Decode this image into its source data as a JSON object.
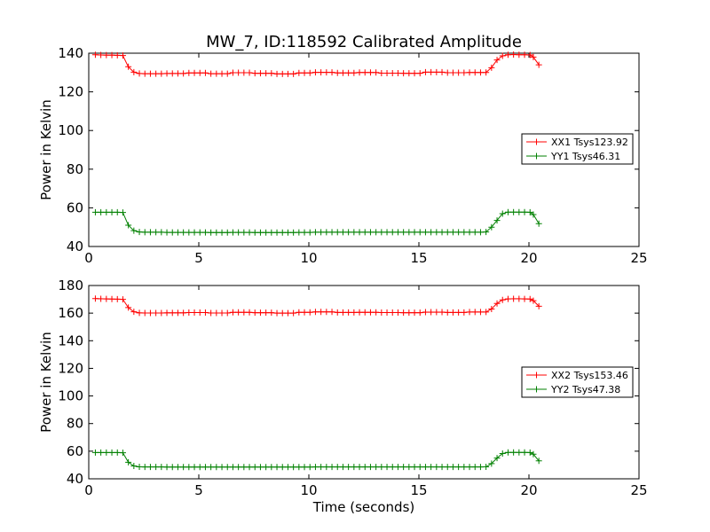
{
  "figure": {
    "title": "MW_7, ID:118592 Calibrated Amplitude"
  },
  "chart_data": [
    {
      "type": "line",
      "title": "MW_7, ID:118592 Calibrated Amplitude",
      "xlabel": "",
      "ylabel": "Power in Kelvin",
      "xlim": [
        0,
        25
      ],
      "ylim": [
        40,
        140
      ],
      "xticks": [
        "0",
        "5",
        "10",
        "15",
        "20",
        "25"
      ],
      "yticks": [
        "40",
        "60",
        "80",
        "100",
        "120",
        "140"
      ],
      "grid": false,
      "legend_position": "right",
      "series": [
        {
          "name": "XX1 Tsys123.92",
          "color": "#ff0000",
          "marker": "+",
          "points": [
            [
              0.3,
              139.2
            ],
            [
              0.55,
              139.1
            ],
            [
              0.8,
              139.0
            ],
            [
              1.05,
              139.0
            ],
            [
              1.3,
              138.9
            ],
            [
              1.55,
              138.8
            ],
            [
              1.8,
              133.0
            ],
            [
              2.05,
              130.2
            ],
            [
              2.3,
              129.5
            ],
            [
              18.05,
              130.0
            ],
            [
              18.3,
              132.5
            ],
            [
              18.55,
              136.5
            ],
            [
              18.8,
              138.6
            ],
            [
              19.05,
              139.2
            ],
            [
              19.3,
              139.3
            ],
            [
              19.55,
              139.2
            ],
            [
              19.8,
              139.2
            ],
            [
              20.05,
              139.1
            ],
            [
              20.2,
              138.0
            ],
            [
              20.45,
              134.0
            ]
          ],
          "flat_segment": {
            "x_start": 2.55,
            "x_end": 17.8,
            "y_values": [
              129.4,
              129.5,
              129.8,
              129.4,
              129.9,
              129.6,
              129.3,
              129.8,
              130.1,
              129.8,
              130.0,
              129.7,
              129.6,
              130.2,
              129.9,
              130.0
            ]
          }
        },
        {
          "name": "YY1 Tsys46.31",
          "color": "#008000",
          "marker": "+",
          "points": [
            [
              0.3,
              57.7
            ],
            [
              0.55,
              57.7
            ],
            [
              0.8,
              57.7
            ],
            [
              1.05,
              57.7
            ],
            [
              1.3,
              57.7
            ],
            [
              1.55,
              57.6
            ],
            [
              1.8,
              51.0
            ],
            [
              2.05,
              48.2
            ],
            [
              2.3,
              47.5
            ],
            [
              18.05,
              47.5
            ],
            [
              18.3,
              50.0
            ],
            [
              18.55,
              53.5
            ],
            [
              18.8,
              57.0
            ],
            [
              19.05,
              57.8
            ],
            [
              19.3,
              57.8
            ],
            [
              19.55,
              57.8
            ],
            [
              19.8,
              57.8
            ],
            [
              20.05,
              57.7
            ],
            [
              20.2,
              56.5
            ],
            [
              20.45,
              51.8
            ]
          ],
          "flat_segment": {
            "x_start": 2.55,
            "x_end": 17.8,
            "y_values": [
              47.4,
              47.3,
              47.3,
              47.2,
              47.3,
              47.2,
              47.2,
              47.3,
              47.4,
              47.4,
              47.4,
              47.4,
              47.4,
              47.4,
              47.4,
              47.4
            ]
          }
        }
      ]
    },
    {
      "type": "line",
      "title": "",
      "xlabel": "Time (seconds)",
      "ylabel": "Power in Kelvin",
      "xlim": [
        0,
        25
      ],
      "ylim": [
        40,
        180
      ],
      "xticks": [
        "0",
        "5",
        "10",
        "15",
        "20",
        "25"
      ],
      "yticks": [
        "40",
        "60",
        "80",
        "100",
        "120",
        "140",
        "160",
        "180"
      ],
      "grid": false,
      "legend_position": "right",
      "series": [
        {
          "name": "XX2 Tsys153.46",
          "color": "#ff0000",
          "marker": "+",
          "points": [
            [
              0.3,
              170.5
            ],
            [
              0.55,
              170.4
            ],
            [
              0.8,
              170.3
            ],
            [
              1.05,
              170.2
            ],
            [
              1.3,
              170.1
            ],
            [
              1.55,
              170.0
            ],
            [
              1.8,
              164.0
            ],
            [
              2.05,
              161.0
            ],
            [
              2.3,
              160.2
            ],
            [
              18.05,
              160.8
            ],
            [
              18.3,
              163.0
            ],
            [
              18.55,
              167.0
            ],
            [
              18.8,
              169.6
            ],
            [
              19.05,
              170.3
            ],
            [
              19.3,
              170.4
            ],
            [
              19.55,
              170.4
            ],
            [
              19.8,
              170.3
            ],
            [
              20.05,
              170.2
            ],
            [
              20.2,
              169.0
            ],
            [
              20.45,
              165.0
            ]
          ],
          "flat_segment": {
            "x_start": 2.55,
            "x_end": 17.8,
            "y_values": [
              160.1,
              160.2,
              160.4,
              160.1,
              160.6,
              160.3,
              160.0,
              160.6,
              160.9,
              160.5,
              160.6,
              160.4,
              160.3,
              160.7,
              160.5,
              160.8
            ]
          }
        },
        {
          "name": "YY2 Tsys47.38",
          "color": "#008000",
          "marker": "+",
          "points": [
            [
              0.3,
              59.0
            ],
            [
              0.55,
              59.0
            ],
            [
              0.8,
              59.0
            ],
            [
              1.05,
              59.0
            ],
            [
              1.3,
              59.0
            ],
            [
              1.55,
              58.9
            ],
            [
              1.8,
              52.0
            ],
            [
              2.05,
              49.3
            ],
            [
              2.3,
              48.7
            ],
            [
              18.05,
              48.7
            ],
            [
              18.3,
              51.0
            ],
            [
              18.55,
              55.0
            ],
            [
              18.8,
              58.3
            ],
            [
              19.05,
              59.1
            ],
            [
              19.3,
              59.1
            ],
            [
              19.55,
              59.1
            ],
            [
              19.8,
              59.1
            ],
            [
              20.05,
              59.0
            ],
            [
              20.2,
              57.8
            ],
            [
              20.45,
              53.0
            ]
          ],
          "flat_segment": {
            "x_start": 2.55,
            "x_end": 17.8,
            "y_values": [
              48.6,
              48.5,
              48.5,
              48.5,
              48.5,
              48.5,
              48.5,
              48.5,
              48.6,
              48.6,
              48.6,
              48.6,
              48.6,
              48.6,
              48.6,
              48.6
            ]
          }
        }
      ]
    }
  ]
}
